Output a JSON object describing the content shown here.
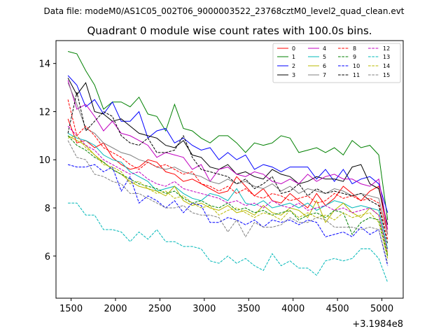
{
  "chart_data": {
    "type": "line",
    "suptitle": "Data file: modeM0/AS1C05_002T06_9000003522_23768cztM0_level2_quad_clean.evt",
    "title": "Quadrant 0 module wise count rates with 100.0s bins.",
    "xlabel": "",
    "ylabel": "",
    "x_offset_label": "+3.1984e8",
    "xlim": [
      1330,
      5240
    ],
    "ylim": [
      4.25,
      14.95
    ],
    "xticks": [
      1500,
      2000,
      2500,
      3000,
      3500,
      4000,
      4500,
      5000
    ],
    "yticks": [
      6,
      8,
      10,
      12,
      14
    ],
    "legend_position": "top-right",
    "x": [
      1465,
      1565,
      1665,
      1765,
      1865,
      1965,
      2065,
      2165,
      2265,
      2365,
      2465,
      2565,
      2665,
      2765,
      2865,
      2965,
      3065,
      3165,
      3265,
      3365,
      3465,
      3565,
      3665,
      3765,
      3865,
      3965,
      4065,
      4165,
      4265,
      4365,
      4465,
      4565,
      4665,
      4765,
      4865,
      4965,
      5065
    ],
    "series": [
      {
        "name": "0",
        "color": "#ff0000",
        "dash": "solid",
        "values": [
          11.7,
          10.7,
          10.8,
          10.5,
          10.7,
          10.1,
          9.8,
          9.6,
          9.7,
          10.0,
          9.9,
          9.5,
          9.4,
          9.1,
          9.2,
          9.0,
          8.8,
          8.6,
          8.7,
          9.3,
          8.9,
          8.5,
          8.8,
          8.3,
          8.2,
          8.6,
          8.3,
          8.0,
          8.6,
          8.1,
          8.4,
          8.9,
          8.6,
          8.3,
          8.7,
          8.9,
          6.9
        ]
      },
      {
        "name": "1",
        "color": "#008000",
        "dash": "solid",
        "values": [
          14.5,
          14.4,
          13.7,
          13.1,
          12.1,
          12.4,
          12.4,
          12.2,
          12.6,
          11.9,
          11.8,
          11.2,
          12.3,
          11.3,
          11.2,
          10.9,
          10.7,
          11.0,
          11.0,
          10.7,
          10.3,
          10.7,
          10.6,
          10.7,
          11.0,
          10.9,
          10.3,
          10.4,
          10.5,
          10.3,
          10.5,
          10.2,
          10.8,
          10.5,
          10.6,
          10.2,
          7.5
        ]
      },
      {
        "name": "2",
        "color": "#0000ff",
        "dash": "solid",
        "values": [
          13.5,
          13.1,
          12.2,
          12.5,
          11.9,
          12.4,
          11.6,
          11.6,
          12.0,
          10.9,
          11.2,
          11.3,
          10.7,
          10.9,
          10.6,
          10.4,
          10.5,
          10.0,
          10.3,
          10.0,
          10.2,
          9.6,
          9.8,
          9.7,
          9.5,
          9.7,
          9.7,
          9.7,
          9.2,
          9.6,
          9.1,
          9.6,
          9.0,
          9.2,
          9.3,
          9.0,
          7.8
        ]
      },
      {
        "name": "3",
        "color": "#000000",
        "dash": "solid",
        "values": [
          13.4,
          12.7,
          13.2,
          12.0,
          11.9,
          11.6,
          11.7,
          11.4,
          11.1,
          11.0,
          10.9,
          10.6,
          10.5,
          10.8,
          10.2,
          10.1,
          9.7,
          9.6,
          9.8,
          9.4,
          9.5,
          9.3,
          9.2,
          9.6,
          9.4,
          9.3,
          9.0,
          9.1,
          9.3,
          9.2,
          9.2,
          9.1,
          9.7,
          9.8,
          9.0,
          8.8,
          7.3
        ]
      },
      {
        "name": "4",
        "color": "#c000c0",
        "dash": "solid",
        "values": [
          13.3,
          12.1,
          12.3,
          11.8,
          11.2,
          11.6,
          11.1,
          11.0,
          10.8,
          10.6,
          10.1,
          10.3,
          10.2,
          10.1,
          9.6,
          9.8,
          9.1,
          9.6,
          9.7,
          9.4,
          9.3,
          9.5,
          9.4,
          9.1,
          9.0,
          9.2,
          9.0,
          9.4,
          9.1,
          9.3,
          9.4,
          9.2,
          9.2,
          9.0,
          8.9,
          9.2,
          7.1
        ]
      },
      {
        "name": "5",
        "color": "#00b8b8",
        "dash": "solid",
        "values": [
          11.1,
          10.9,
          10.8,
          10.6,
          10.2,
          10.0,
          9.9,
          9.5,
          9.3,
          9.1,
          8.7,
          8.8,
          8.9,
          8.6,
          8.4,
          8.3,
          8.6,
          8.5,
          8.3,
          8.8,
          8.2,
          8.1,
          8.3,
          8.0,
          8.1,
          8.2,
          8.0,
          8.2,
          7.9,
          8.1,
          8.3,
          8.2,
          8.0,
          8.1,
          8.0,
          7.9,
          6.3
        ]
      },
      {
        "name": "6",
        "color": "#b8b800",
        "dash": "solid",
        "values": [
          11.0,
          10.8,
          10.6,
          10.2,
          9.9,
          9.6,
          9.4,
          9.1,
          8.9,
          8.8,
          8.7,
          8.5,
          8.9,
          8.3,
          8.1,
          8.2,
          8.0,
          7.9,
          8.1,
          7.8,
          7.9,
          7.7,
          8.1,
          7.8,
          7.7,
          8.0,
          7.9,
          7.6,
          8.3,
          7.4,
          7.9,
          8.2,
          7.8,
          7.6,
          8.0,
          7.7,
          6.1
        ]
      },
      {
        "name": "7",
        "color": "#808080",
        "dash": "solid",
        "values": [
          13.2,
          12.3,
          11.3,
          11.1,
          10.7,
          10.5,
          10.3,
          10.2,
          10.0,
          9.9,
          9.7,
          9.6,
          9.7,
          9.5,
          9.4,
          9.3,
          9.1,
          9.0,
          9.2,
          9.0,
          9.1,
          8.9,
          8.8,
          9.0,
          8.7,
          8.9,
          8.6,
          8.8,
          8.7,
          8.6,
          8.8,
          8.7,
          8.5,
          8.6,
          8.5,
          8.4,
          6.9
        ]
      },
      {
        "name": "8",
        "color": "#ff0000",
        "dash": "dashed",
        "values": [
          12.5,
          11.0,
          11.4,
          11.0,
          10.5,
          10.3,
          10.1,
          9.8,
          9.6,
          9.9,
          9.7,
          9.8,
          9.6,
          9.4,
          9.5,
          9.0,
          8.9,
          8.7,
          8.9,
          8.6,
          8.8,
          8.5,
          8.4,
          8.6,
          8.5,
          8.3,
          8.4,
          8.5,
          8.2,
          8.3,
          8.6,
          8.4,
          8.5,
          8.3,
          8.4,
          8.2,
          6.7
        ]
      },
      {
        "name": "9",
        "color": "#008000",
        "dash": "dashed",
        "values": [
          11.0,
          10.6,
          10.4,
          10.1,
          9.9,
          9.6,
          9.4,
          9.2,
          9.0,
          8.9,
          8.8,
          8.6,
          8.7,
          8.4,
          8.2,
          8.3,
          8.1,
          8.0,
          8.2,
          7.9,
          8.0,
          7.8,
          7.9,
          7.7,
          7.8,
          7.9,
          7.5,
          7.7,
          7.8,
          7.6,
          7.9,
          7.8,
          6.9,
          7.4,
          7.6,
          7.5,
          6.0
        ]
      },
      {
        "name": "10",
        "color": "#0000ff",
        "dash": "dashed",
        "values": [
          9.8,
          9.7,
          9.7,
          9.8,
          9.5,
          9.7,
          8.7,
          9.3,
          8.2,
          8.5,
          8.3,
          8.0,
          8.3,
          7.8,
          8.2,
          8.1,
          7.4,
          7.4,
          7.6,
          7.5,
          7.3,
          7.5,
          7.2,
          7.5,
          7.4,
          7.5,
          7.3,
          7.5,
          7.4,
          6.8,
          6.9,
          7.0,
          6.8,
          7.2,
          6.9,
          7.1,
          5.6
        ]
      },
      {
        "name": "11",
        "color": "#000000",
        "dash": "dashed",
        "values": [
          11.1,
          12.8,
          11.2,
          11.6,
          12.0,
          11.8,
          11.0,
          10.7,
          10.6,
          10.9,
          10.3,
          10.3,
          10.4,
          11.0,
          10.1,
          9.6,
          9.5,
          9.4,
          9.3,
          9.0,
          9.2,
          8.8,
          9.0,
          9.3,
          8.6,
          8.7,
          9.0,
          8.5,
          8.8,
          8.6,
          8.7,
          8.6,
          8.5,
          8.6,
          8.3,
          8.1,
          6.5
        ]
      },
      {
        "name": "12",
        "color": "#c000c0",
        "dash": "dashed",
        "values": [
          11.4,
          11.0,
          10.6,
          10.4,
          10.0,
          9.8,
          9.6,
          9.4,
          9.5,
          9.2,
          9.0,
          8.9,
          9.1,
          8.8,
          8.7,
          8.6,
          8.5,
          8.4,
          8.2,
          8.3,
          8.1,
          8.2,
          8.0,
          8.3,
          8.1,
          8.0,
          8.2,
          7.9,
          8.0,
          8.1,
          7.9,
          8.0,
          7.8,
          7.9,
          8.0,
          7.7,
          6.2
        ]
      },
      {
        "name": "13",
        "color": "#00b8b8",
        "dash": "dashed",
        "values": [
          8.2,
          8.2,
          7.7,
          7.7,
          7.1,
          7.1,
          7.0,
          6.6,
          7.0,
          6.7,
          7.1,
          6.6,
          6.6,
          6.4,
          6.4,
          6.3,
          5.8,
          5.7,
          6.0,
          5.7,
          5.9,
          5.6,
          5.4,
          6.1,
          5.6,
          5.8,
          5.5,
          5.5,
          5.2,
          5.8,
          5.9,
          5.8,
          5.9,
          6.3,
          6.3,
          5.9,
          4.9
        ]
      },
      {
        "name": "14",
        "color": "#b8b800",
        "dash": "dashed",
        "values": [
          10.9,
          11.0,
          10.5,
          10.2,
          9.8,
          9.7,
          9.5,
          9.0,
          9.1,
          8.8,
          8.6,
          8.7,
          8.4,
          8.5,
          8.2,
          8.0,
          8.1,
          7.7,
          7.9,
          8.0,
          7.8,
          7.6,
          7.8,
          7.7,
          7.5,
          7.9,
          7.6,
          7.8,
          7.6,
          7.7,
          7.5,
          7.8,
          7.6,
          7.7,
          7.8,
          7.4,
          5.9
        ]
      },
      {
        "name": "15",
        "color": "#808080",
        "dash": "dashed",
        "values": [
          10.8,
          10.1,
          10.0,
          9.4,
          9.3,
          9.1,
          9.0,
          8.6,
          8.6,
          8.4,
          8.2,
          8.0,
          8.0,
          8.1,
          7.8,
          7.7,
          7.7,
          7.6,
          7.0,
          7.5,
          6.8,
          7.4,
          7.2,
          7.2,
          7.3,
          7.6,
          7.4,
          7.4,
          7.6,
          7.5,
          7.2,
          7.2,
          7.2,
          7.1,
          7.2,
          7.1,
          5.7
        ]
      }
    ]
  }
}
